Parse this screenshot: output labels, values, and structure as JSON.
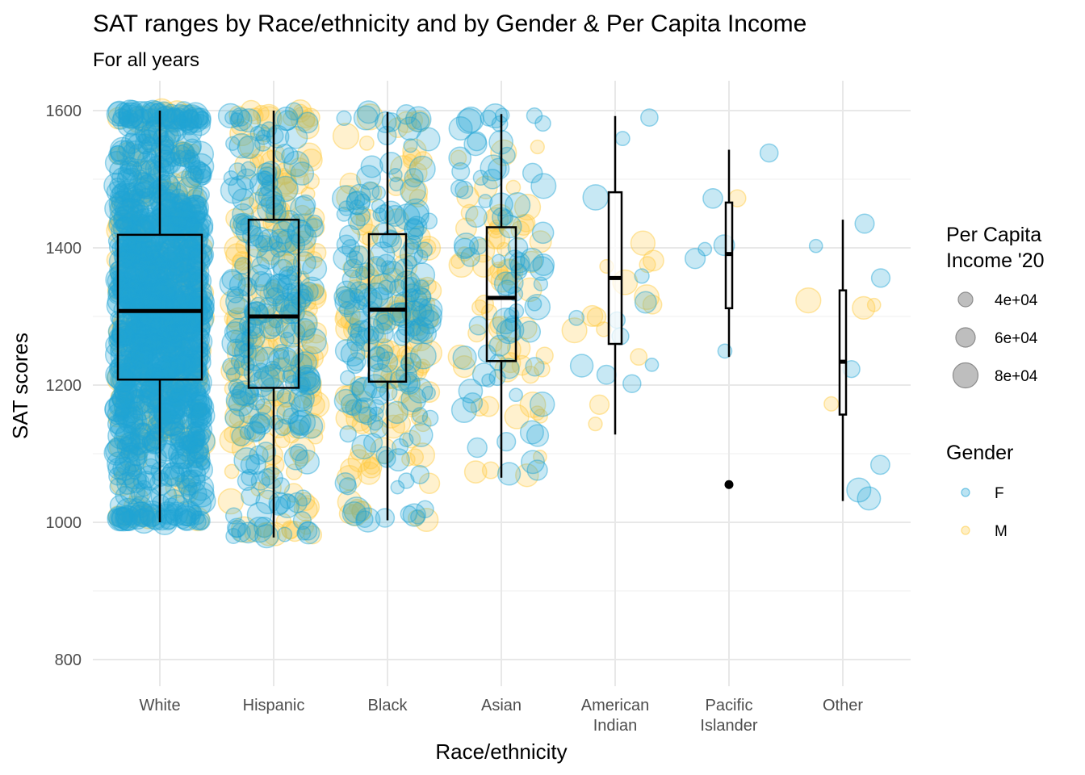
{
  "chart_data": {
    "type": "box-jitter",
    "title": "SAT ranges by Race/ethnicity and by Gender & Per Capita Income",
    "subtitle": "For all years",
    "xlabel": "Race/ethnicity",
    "ylabel": "SAT scores",
    "ylim": [
      775,
      1640
    ],
    "y_ticks": [
      800,
      1000,
      1200,
      1400,
      1600
    ],
    "y_tick_labels": [
      "800",
      "1000",
      "1200",
      "1400",
      "1600"
    ],
    "categories": [
      {
        "label_lines": [
          "White"
        ],
        "n_f": 1200,
        "n_m": 220,
        "min": 1000,
        "q1": 1208,
        "median": 1308,
        "q3": 1419,
        "max": 1600,
        "outliers": []
      },
      {
        "label_lines": [
          "Hispanic"
        ],
        "n_f": 240,
        "n_m": 200,
        "min": 978,
        "q1": 1196,
        "median": 1300,
        "q3": 1441,
        "max": 1600,
        "outliers": []
      },
      {
        "label_lines": [
          "Black"
        ],
        "n_f": 190,
        "n_m": 140,
        "min": 1003,
        "q1": 1205,
        "median": 1310,
        "q3": 1420,
        "max": 1598,
        "outliers": []
      },
      {
        "label_lines": [
          "Asian"
        ],
        "n_f": 80,
        "n_m": 60,
        "min": 1065,
        "q1": 1235,
        "median": 1327,
        "q3": 1430,
        "max": 1595,
        "outliers": []
      },
      {
        "label_lines": [
          "American",
          "Indian"
        ],
        "n_f": 12,
        "n_m": 14,
        "min": 1128,
        "q1": 1260,
        "median": 1356,
        "q3": 1481,
        "max": 1592,
        "outliers": []
      },
      {
        "label_lines": [
          "Pacific",
          "Islander"
        ],
        "n_f": 6,
        "n_m": 1,
        "min": 1241,
        "q1": 1312,
        "median": 1391,
        "q3": 1466,
        "max": 1543,
        "outliers": [
          1055
        ]
      },
      {
        "label_lines": [
          "Other"
        ],
        "n_f": 7,
        "n_m": 4,
        "min": 1031,
        "q1": 1157,
        "median": 1234,
        "q3": 1338,
        "max": 1441,
        "outliers": []
      }
    ],
    "legend": {
      "size_title_lines": [
        "Per Capita",
        "Income '20"
      ],
      "size_labels": [
        "4e+04",
        "6e+04",
        "8e+04"
      ],
      "gender_title": "Gender",
      "gender_labels": [
        "F",
        "M"
      ]
    },
    "colors": {
      "F": "#1fa3d5",
      "M": "#ffc93c",
      "grid": "#ebebeb",
      "box": "#000000"
    }
  }
}
